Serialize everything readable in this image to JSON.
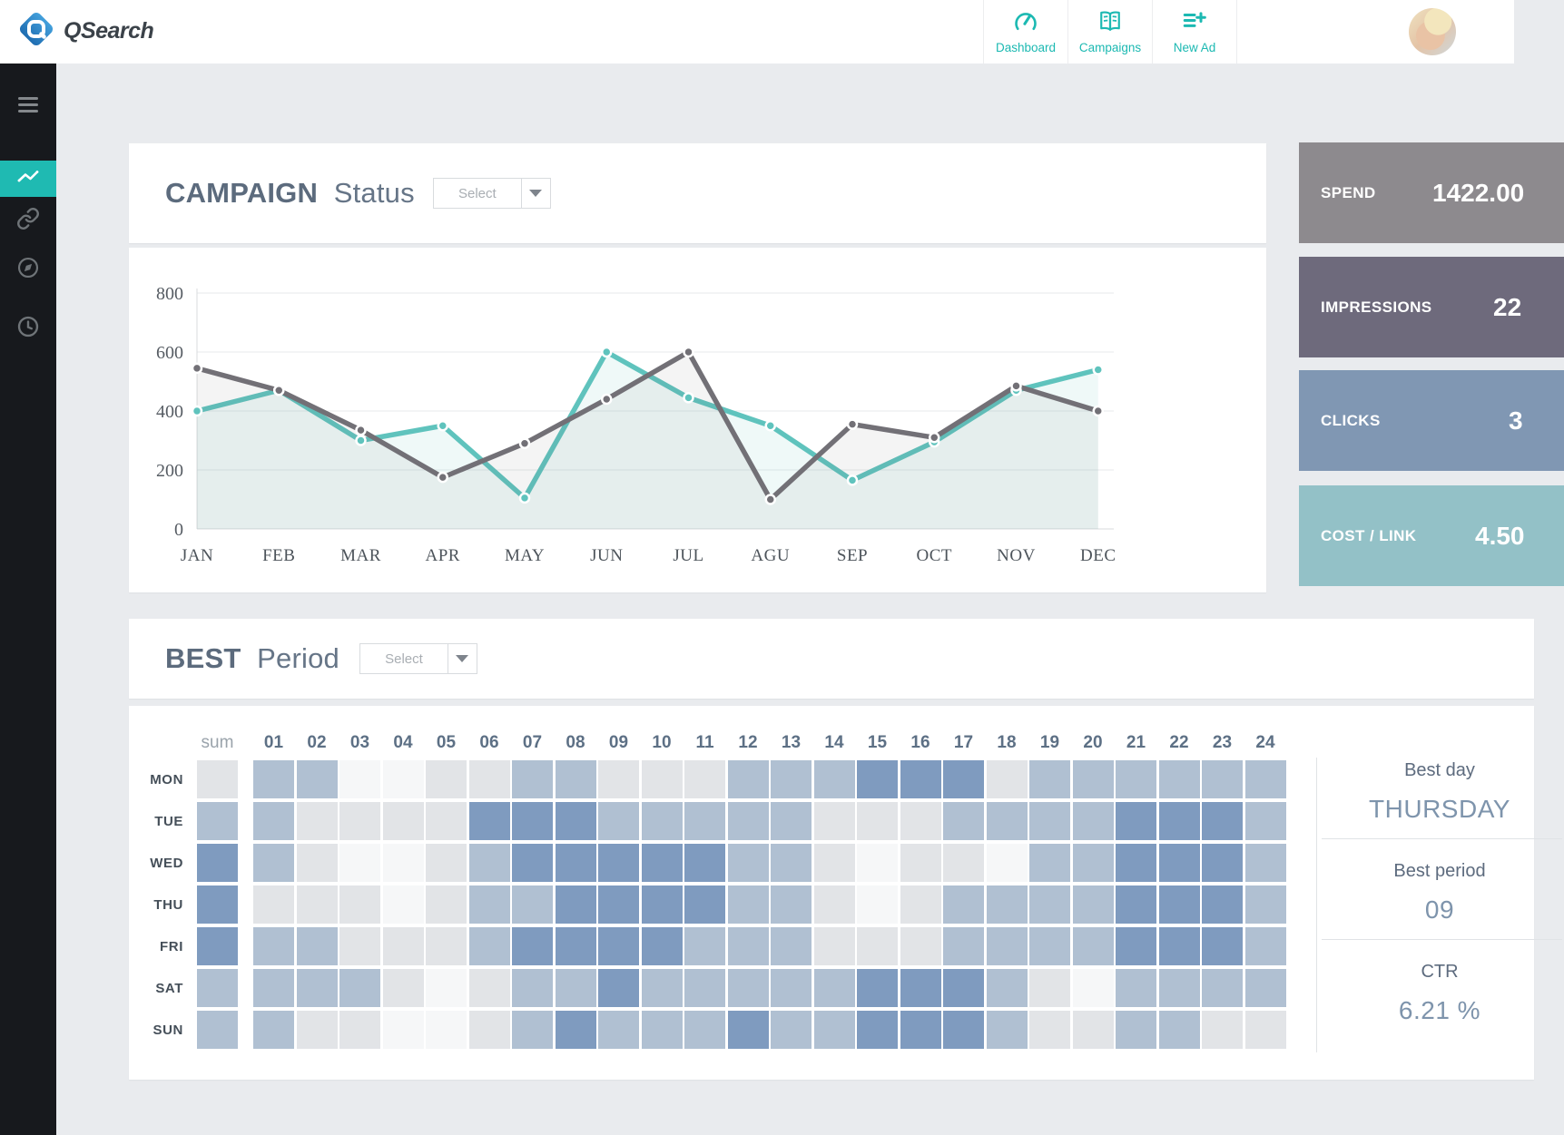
{
  "header": {
    "brand": "QSearch",
    "nav": [
      {
        "label": "Dashboard",
        "icon": "gauge-icon"
      },
      {
        "label": "Campaigns",
        "icon": "book-icon"
      },
      {
        "label": "New Ad",
        "icon": "list-plus-icon"
      }
    ],
    "accent_color": "#1cb9b2"
  },
  "sidebar": {
    "items": [
      {
        "icon": "menu-icon"
      },
      {
        "icon": "line-chart-icon",
        "active": true
      },
      {
        "icon": "link-icon"
      },
      {
        "icon": "compass-icon"
      },
      {
        "icon": "clock-icon"
      }
    ],
    "active_color": "#1fbab2"
  },
  "campaign": {
    "title_strong": "CAMPAIGN",
    "title_light": "Status",
    "select_label": "Select"
  },
  "chart_data": {
    "type": "line",
    "title": "CAMPAIGN Status",
    "categories": [
      "JAN",
      "FEB",
      "MAR",
      "APR",
      "MAY",
      "JUN",
      "JUL",
      "AGU",
      "SEP",
      "OCT",
      "NOV",
      "DEC"
    ],
    "series": [
      {
        "name": "campaign-teal",
        "color": "#5fc3bd",
        "fill": "rgba(95,195,189,0.10)",
        "values": [
          400,
          470,
          300,
          350,
          105,
          600,
          445,
          350,
          165,
          295,
          470,
          540
        ]
      },
      {
        "name": "campaign-gray",
        "color": "#727076",
        "fill": "rgba(114,112,118,0.08)",
        "values": [
          545,
          470,
          335,
          175,
          290,
          440,
          600,
          100,
          355,
          310,
          485,
          400
        ]
      }
    ],
    "ylim": [
      0,
      800
    ],
    "yticks": [
      0,
      200,
      400,
      600,
      800
    ],
    "grid": true,
    "legend": "none"
  },
  "stats": [
    {
      "label": "SPEND",
      "value": "1422.00",
      "color": "#8d8a8e"
    },
    {
      "label": "IMPRESSIONS",
      "value": "22",
      "color": "#6e6a7c"
    },
    {
      "label": "CLICKS",
      "value": "3",
      "color": "#8097b3"
    },
    {
      "label": "COST / LINK",
      "value": "4.50",
      "color": "#93c1c7"
    }
  ],
  "best": {
    "title_strong": "BEST",
    "title_light": "Period",
    "select_label": "Select"
  },
  "heatmap": {
    "corner_label": "sum",
    "col_headers": [
      "01",
      "02",
      "03",
      "04",
      "05",
      "06",
      "07",
      "08",
      "09",
      "10",
      "11",
      "12",
      "13",
      "14",
      "15",
      "16",
      "17",
      "18",
      "19",
      "20",
      "21",
      "22",
      "23",
      "24"
    ],
    "row_labels": [
      "MON",
      "TUE",
      "WED",
      "THU",
      "FRI",
      "SAT",
      "SUN"
    ],
    "sum_levels": [
      2,
      3,
      4,
      4,
      4,
      3,
      3
    ],
    "cell_levels": [
      [
        3,
        3,
        1,
        1,
        2,
        2,
        3,
        3,
        2,
        2,
        2,
        3,
        3,
        3,
        4,
        4,
        4,
        2,
        3,
        3,
        3,
        3,
        3,
        3
      ],
      [
        3,
        2,
        2,
        2,
        2,
        4,
        4,
        4,
        3,
        3,
        3,
        3,
        3,
        2,
        2,
        2,
        3,
        3,
        3,
        3,
        4,
        4,
        4,
        3
      ],
      [
        3,
        2,
        1,
        1,
        2,
        3,
        4,
        4,
        4,
        4,
        4,
        3,
        3,
        2,
        1,
        2,
        2,
        1,
        3,
        3,
        4,
        4,
        4,
        3
      ],
      [
        2,
        2,
        2,
        1,
        2,
        3,
        3,
        4,
        4,
        4,
        4,
        3,
        3,
        2,
        1,
        2,
        3,
        3,
        3,
        3,
        4,
        4,
        4,
        3
      ],
      [
        3,
        3,
        2,
        2,
        2,
        3,
        4,
        4,
        4,
        4,
        3,
        3,
        3,
        2,
        2,
        2,
        3,
        3,
        3,
        3,
        4,
        4,
        4,
        3
      ],
      [
        3,
        3,
        3,
        2,
        1,
        2,
        3,
        3,
        4,
        3,
        3,
        3,
        3,
        3,
        4,
        4,
        4,
        3,
        2,
        1,
        3,
        3,
        3,
        3
      ],
      [
        3,
        2,
        2,
        1,
        1,
        2,
        3,
        4,
        3,
        3,
        3,
        4,
        3,
        3,
        4,
        4,
        4,
        3,
        2,
        2,
        3,
        3,
        2,
        2
      ]
    ],
    "level_colors": {
      "1": "#f6f7f8",
      "2": "#e2e4e7",
      "3": "#b0c0d2",
      "4": "#7f9bbf"
    }
  },
  "panel": {
    "best_day_label": "Best day",
    "best_day_value": "THURSDAY",
    "best_period_label": "Best period",
    "best_period_value": "09",
    "ctr_label": "CTR",
    "ctr_value": "6.21 %"
  }
}
